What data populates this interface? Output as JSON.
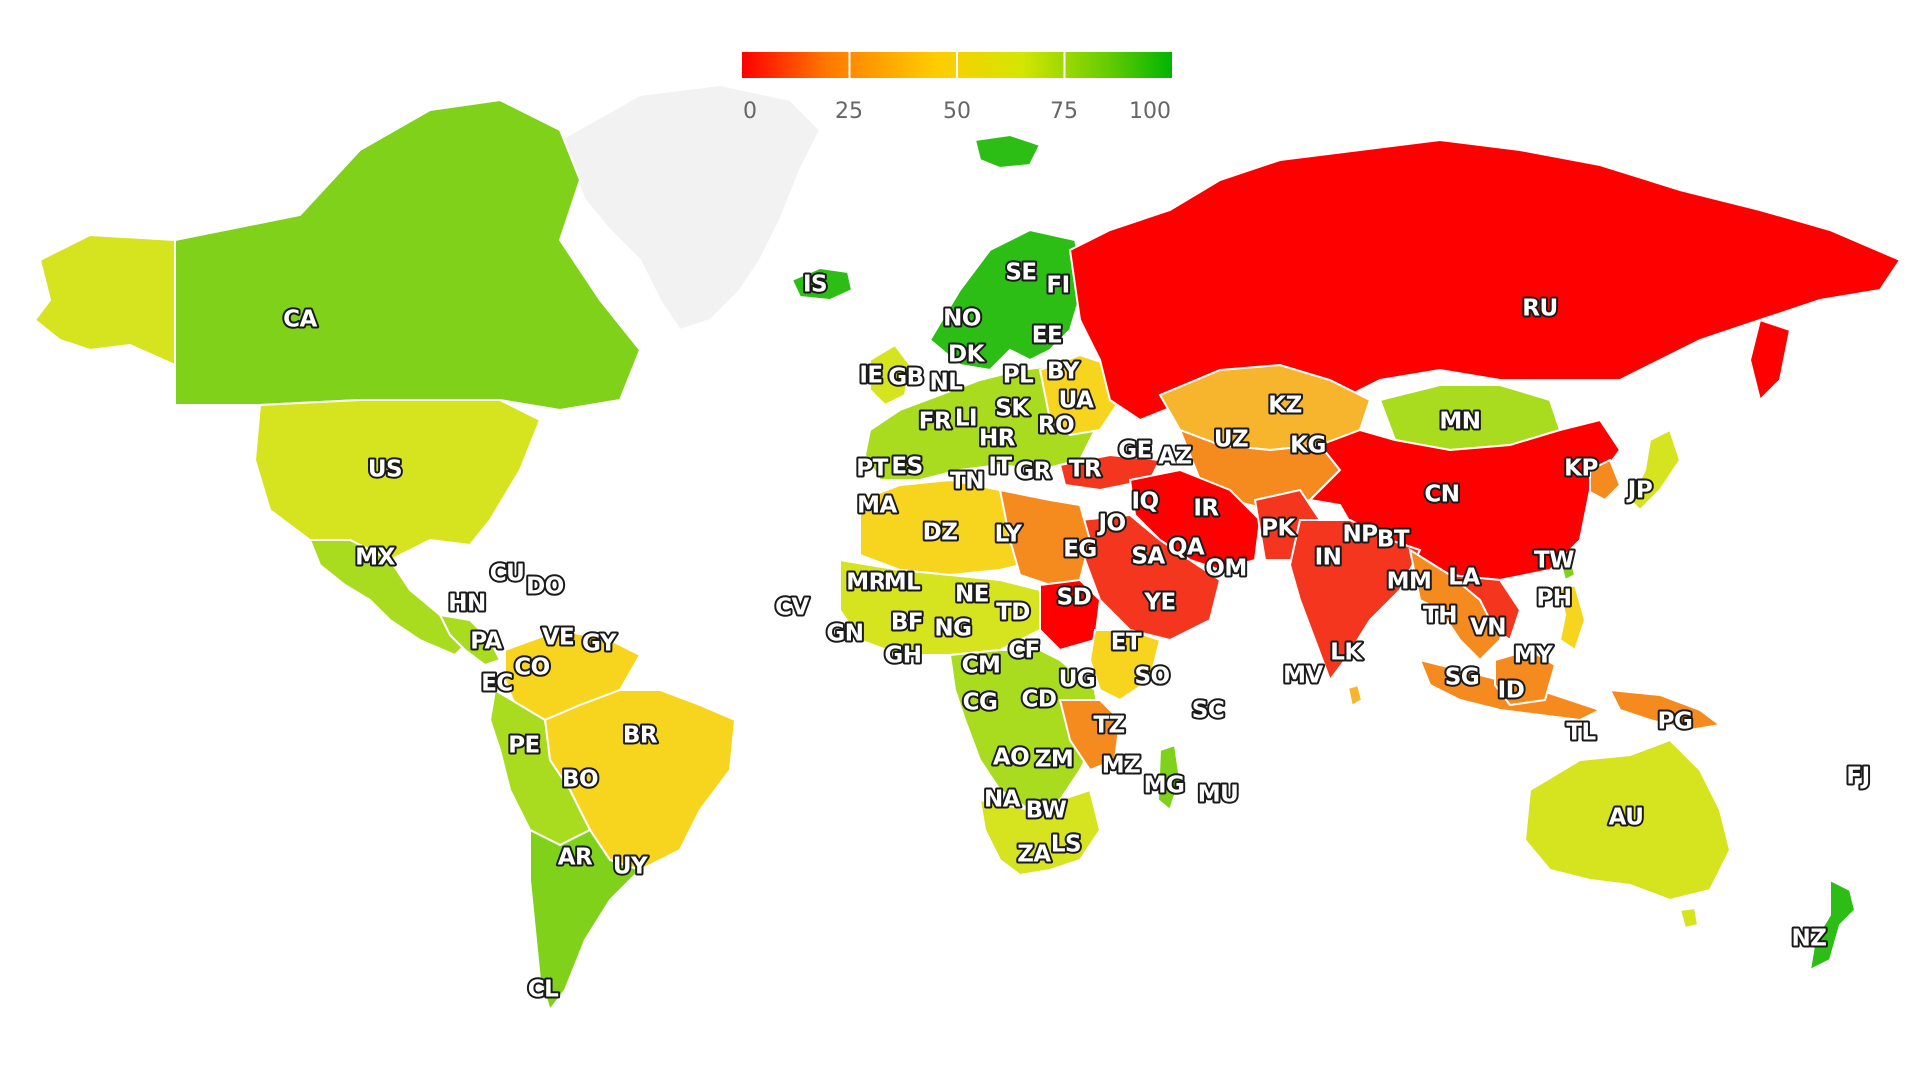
{
  "legend": {
    "stops": [
      "#ff0000",
      "#ff7a00",
      "#ffcc00",
      "#d4e600",
      "#66cc00",
      "#00b400"
    ],
    "ticks": [
      "0",
      "25",
      "50",
      "75",
      "100"
    ],
    "min": 0,
    "max": 100
  },
  "colors": {
    "no_data": "#f2f2f2",
    "red": "#ff0000",
    "red_orange": "#f5361e",
    "orange": "#f58a1f",
    "amber": "#f7b52e",
    "yellow": "#f7d51e",
    "yellow_green": "#d6e31f",
    "lime": "#a9dc1f",
    "green": "#7fd11a",
    "deep_green": "#2cbe15"
  },
  "countries": [
    {
      "code": "CA",
      "tone": "green"
    },
    {
      "code": "US",
      "tone": "yellow_green"
    },
    {
      "code": "MX",
      "tone": "lime"
    },
    {
      "code": "CU",
      "tone": "lime"
    },
    {
      "code": "DO",
      "tone": "lime"
    },
    {
      "code": "HN",
      "tone": "lime"
    },
    {
      "code": "PA",
      "tone": "lime"
    },
    {
      "code": "VE",
      "tone": "amber"
    },
    {
      "code": "GY",
      "tone": "green"
    },
    {
      "code": "CO",
      "tone": "yellow"
    },
    {
      "code": "EC",
      "tone": "lime"
    },
    {
      "code": "PE",
      "tone": "lime"
    },
    {
      "code": "BR",
      "tone": "yellow"
    },
    {
      "code": "BO",
      "tone": "lime"
    },
    {
      "code": "AR",
      "tone": "green"
    },
    {
      "code": "UY",
      "tone": "lime"
    },
    {
      "code": "CL",
      "tone": "green"
    },
    {
      "code": "IS",
      "tone": "deep_green"
    },
    {
      "code": "NO",
      "tone": "deep_green"
    },
    {
      "code": "SE",
      "tone": "green"
    },
    {
      "code": "FI",
      "tone": "deep_green"
    },
    {
      "code": "EE",
      "tone": "green"
    },
    {
      "code": "DK",
      "tone": "green"
    },
    {
      "code": "IE",
      "tone": "lime"
    },
    {
      "code": "GB",
      "tone": "yellow_green"
    },
    {
      "code": "NL",
      "tone": "green"
    },
    {
      "code": "PL",
      "tone": "lime"
    },
    {
      "code": "BY",
      "tone": "orange"
    },
    {
      "code": "UA",
      "tone": "yellow"
    },
    {
      "code": "FR",
      "tone": "lime"
    },
    {
      "code": "LI",
      "tone": "green"
    },
    {
      "code": "SK",
      "tone": "lime"
    },
    {
      "code": "RO",
      "tone": "lime"
    },
    {
      "code": "HR",
      "tone": "lime"
    },
    {
      "code": "PT",
      "tone": "lime"
    },
    {
      "code": "ES",
      "tone": "lime"
    },
    {
      "code": "IT",
      "tone": "lime"
    },
    {
      "code": "GR",
      "tone": "lime"
    },
    {
      "code": "TN",
      "tone": "yellow_green"
    },
    {
      "code": "MA",
      "tone": "yellow_green"
    },
    {
      "code": "DZ",
      "tone": "yellow"
    },
    {
      "code": "LY",
      "tone": "orange"
    },
    {
      "code": "EG",
      "tone": "red_orange"
    },
    {
      "code": "SD",
      "tone": "red"
    },
    {
      "code": "TR",
      "tone": "red_orange"
    },
    {
      "code": "GE",
      "tone": "orange"
    },
    {
      "code": "AZ",
      "tone": "orange"
    },
    {
      "code": "IQ",
      "tone": "red_orange"
    },
    {
      "code": "JO",
      "tone": "orange"
    },
    {
      "code": "SA",
      "tone": "red_orange"
    },
    {
      "code": "QA",
      "tone": "orange"
    },
    {
      "code": "OM",
      "tone": "orange"
    },
    {
      "code": "YE",
      "tone": "red_orange"
    },
    {
      "code": "IR",
      "tone": "red"
    },
    {
      "code": "KZ",
      "tone": "amber"
    },
    {
      "code": "UZ",
      "tone": "orange"
    },
    {
      "code": "KG",
      "tone": "yellow"
    },
    {
      "code": "MN",
      "tone": "lime"
    },
    {
      "code": "RU",
      "tone": "red"
    },
    {
      "code": "CN",
      "tone": "red"
    },
    {
      "code": "KP",
      "tone": "red"
    },
    {
      "code": "JP",
      "tone": "yellow_green"
    },
    {
      "code": "PK",
      "tone": "red_orange"
    },
    {
      "code": "IN",
      "tone": "red_orange"
    },
    {
      "code": "NP",
      "tone": "red_orange"
    },
    {
      "code": "BT",
      "tone": "red_orange"
    },
    {
      "code": "MM",
      "tone": "red_orange"
    },
    {
      "code": "LA",
      "tone": "red_orange"
    },
    {
      "code": "TW",
      "tone": "green"
    },
    {
      "code": "PH",
      "tone": "yellow"
    },
    {
      "code": "TH",
      "tone": "orange"
    },
    {
      "code": "VN",
      "tone": "red_orange"
    },
    {
      "code": "MY",
      "tone": "amber"
    },
    {
      "code": "SG",
      "tone": "orange"
    },
    {
      "code": "ID",
      "tone": "orange"
    },
    {
      "code": "LK",
      "tone": "amber"
    },
    {
      "code": "MV",
      "tone": "amber"
    },
    {
      "code": "TL",
      "tone": "lime"
    },
    {
      "code": "PG",
      "tone": "yellow_green"
    },
    {
      "code": "AU",
      "tone": "yellow_green"
    },
    {
      "code": "NZ",
      "tone": "deep_green"
    },
    {
      "code": "FJ",
      "tone": "lime"
    },
    {
      "code": "MR",
      "tone": "yellow_green"
    },
    {
      "code": "ML",
      "tone": "yellow_green"
    },
    {
      "code": "NE",
      "tone": "lime"
    },
    {
      "code": "TD",
      "tone": "yellow_green"
    },
    {
      "code": "CV",
      "tone": "lime"
    },
    {
      "code": "GN",
      "tone": "lime"
    },
    {
      "code": "BF",
      "tone": "lime"
    },
    {
      "code": "NG",
      "tone": "yellow_green"
    },
    {
      "code": "GH",
      "tone": "deep_green"
    },
    {
      "code": "CF",
      "tone": "yellow_green"
    },
    {
      "code": "ET",
      "tone": "yellow"
    },
    {
      "code": "SO",
      "tone": "yellow"
    },
    {
      "code": "CM",
      "tone": "lime"
    },
    {
      "code": "UG",
      "tone": "lime"
    },
    {
      "code": "CG",
      "tone": "lime"
    },
    {
      "code": "CD",
      "tone": "lime"
    },
    {
      "code": "TZ",
      "tone": "orange"
    },
    {
      "code": "AO",
      "tone": "lime"
    },
    {
      "code": "ZM",
      "tone": "lime"
    },
    {
      "code": "MZ",
      "tone": "yellow_green"
    },
    {
      "code": "MG",
      "tone": "green"
    },
    {
      "code": "NA",
      "tone": "lime"
    },
    {
      "code": "BW",
      "tone": "yellow_green"
    },
    {
      "code": "ZA",
      "tone": "yellow_green"
    },
    {
      "code": "LS",
      "tone": "lime"
    },
    {
      "code": "SC",
      "tone": "lime"
    },
    {
      "code": "MU",
      "tone": "lime"
    }
  ]
}
